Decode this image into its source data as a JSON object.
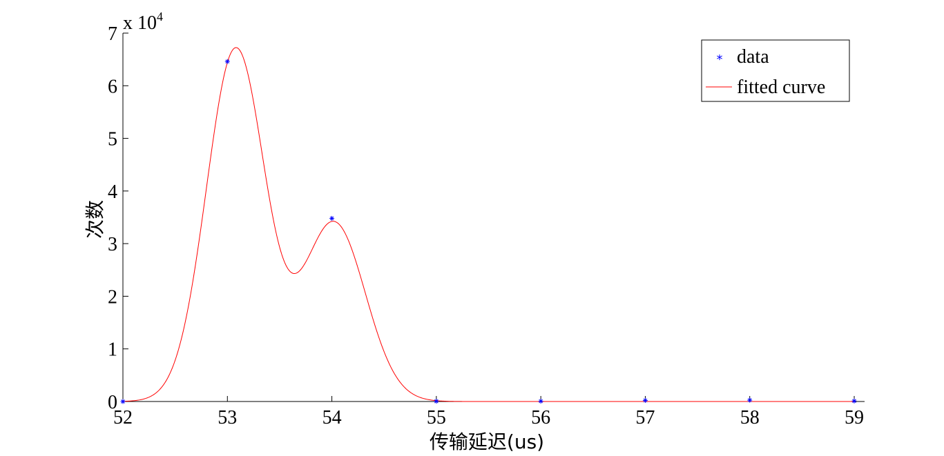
{
  "chart_data": {
    "type": "line",
    "title": "",
    "xlabel": "传输延迟(us)",
    "ylabel": "次数",
    "xlim": [
      52,
      59
    ],
    "ylim": [
      0,
      70000
    ],
    "y_exponent_label": "x 10",
    "y_exponent_power": "4",
    "x_ticks": [
      52,
      53,
      54,
      55,
      56,
      57,
      58,
      59
    ],
    "x_tick_labels": [
      "52",
      "53",
      "54",
      "55",
      "56",
      "57",
      "58",
      "59"
    ],
    "y_ticks": [
      0,
      10000,
      20000,
      30000,
      40000,
      50000,
      60000,
      70000
    ],
    "y_tick_labels": [
      "0",
      "1",
      "2",
      "3",
      "4",
      "5",
      "6",
      "7"
    ],
    "grid": false,
    "legend_position": "top-right",
    "series": [
      {
        "name": "data",
        "kind": "scatter",
        "marker": "*",
        "color": "#0000ff",
        "x": [
          52,
          53,
          54,
          55,
          56,
          57,
          58,
          59
        ],
        "y": [
          0,
          64600,
          34800,
          50,
          60,
          200,
          250,
          100
        ]
      },
      {
        "name": "fitted curve",
        "kind": "line",
        "color": "#ff0000",
        "model": "gaussian-2",
        "components": [
          {
            "amplitude": 67000,
            "center": 53.08,
            "width": 0.28
          },
          {
            "amplitude": 34000,
            "center": 54.02,
            "width": 0.3
          }
        ]
      }
    ]
  }
}
